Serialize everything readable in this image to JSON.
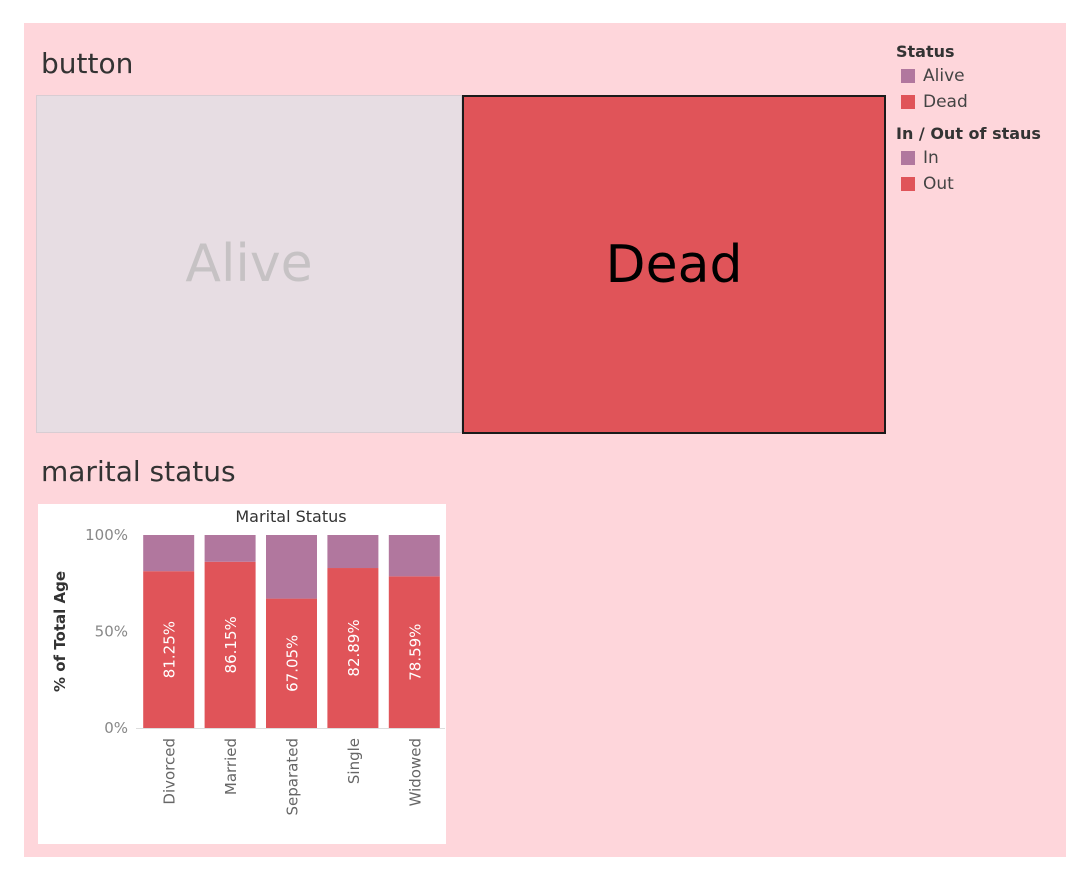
{
  "colors": {
    "dashboard_bg": "#fed6db",
    "in": "#b1779e",
    "out": "#e05459",
    "alive_tile": "#e7dde3",
    "dead_tile": "#e05459"
  },
  "button_section": {
    "title": "button",
    "tiles": [
      {
        "label": "Alive",
        "selected": false
      },
      {
        "label": "Dead",
        "selected": true
      }
    ]
  },
  "legend": {
    "status_title": "Status",
    "status_items": [
      {
        "label": "Alive",
        "color": "#b1779e"
      },
      {
        "label": "Dead",
        "color": "#e05459"
      }
    ],
    "inout_title": "In / Out of staus",
    "inout_items": [
      {
        "label": "In",
        "color": "#b1779e"
      },
      {
        "label": "Out",
        "color": "#e05459"
      }
    ]
  },
  "marital_section": {
    "title": "marital status"
  },
  "chart_data": {
    "type": "bar",
    "stacked": true,
    "title": "Marital Status",
    "xlabel": "",
    "ylabel": "% of Total Age",
    "ylim": [
      0,
      100
    ],
    "yticks": [
      "0%",
      "50%",
      "100%"
    ],
    "categories": [
      "Divorced",
      "Married",
      "Separated",
      "Single",
      "Widowed"
    ],
    "series": [
      {
        "name": "Out",
        "color": "#e05459",
        "values": [
          81.25,
          86.15,
          67.05,
          82.89,
          78.59
        ],
        "labels": [
          "81.25%",
          "86.15%",
          "67.05%",
          "82.89%",
          "78.59%"
        ]
      },
      {
        "name": "In",
        "color": "#b1779e",
        "values": [
          18.75,
          13.85,
          32.95,
          17.11,
          21.41
        ]
      }
    ],
    "grid": false,
    "legend": "none"
  }
}
